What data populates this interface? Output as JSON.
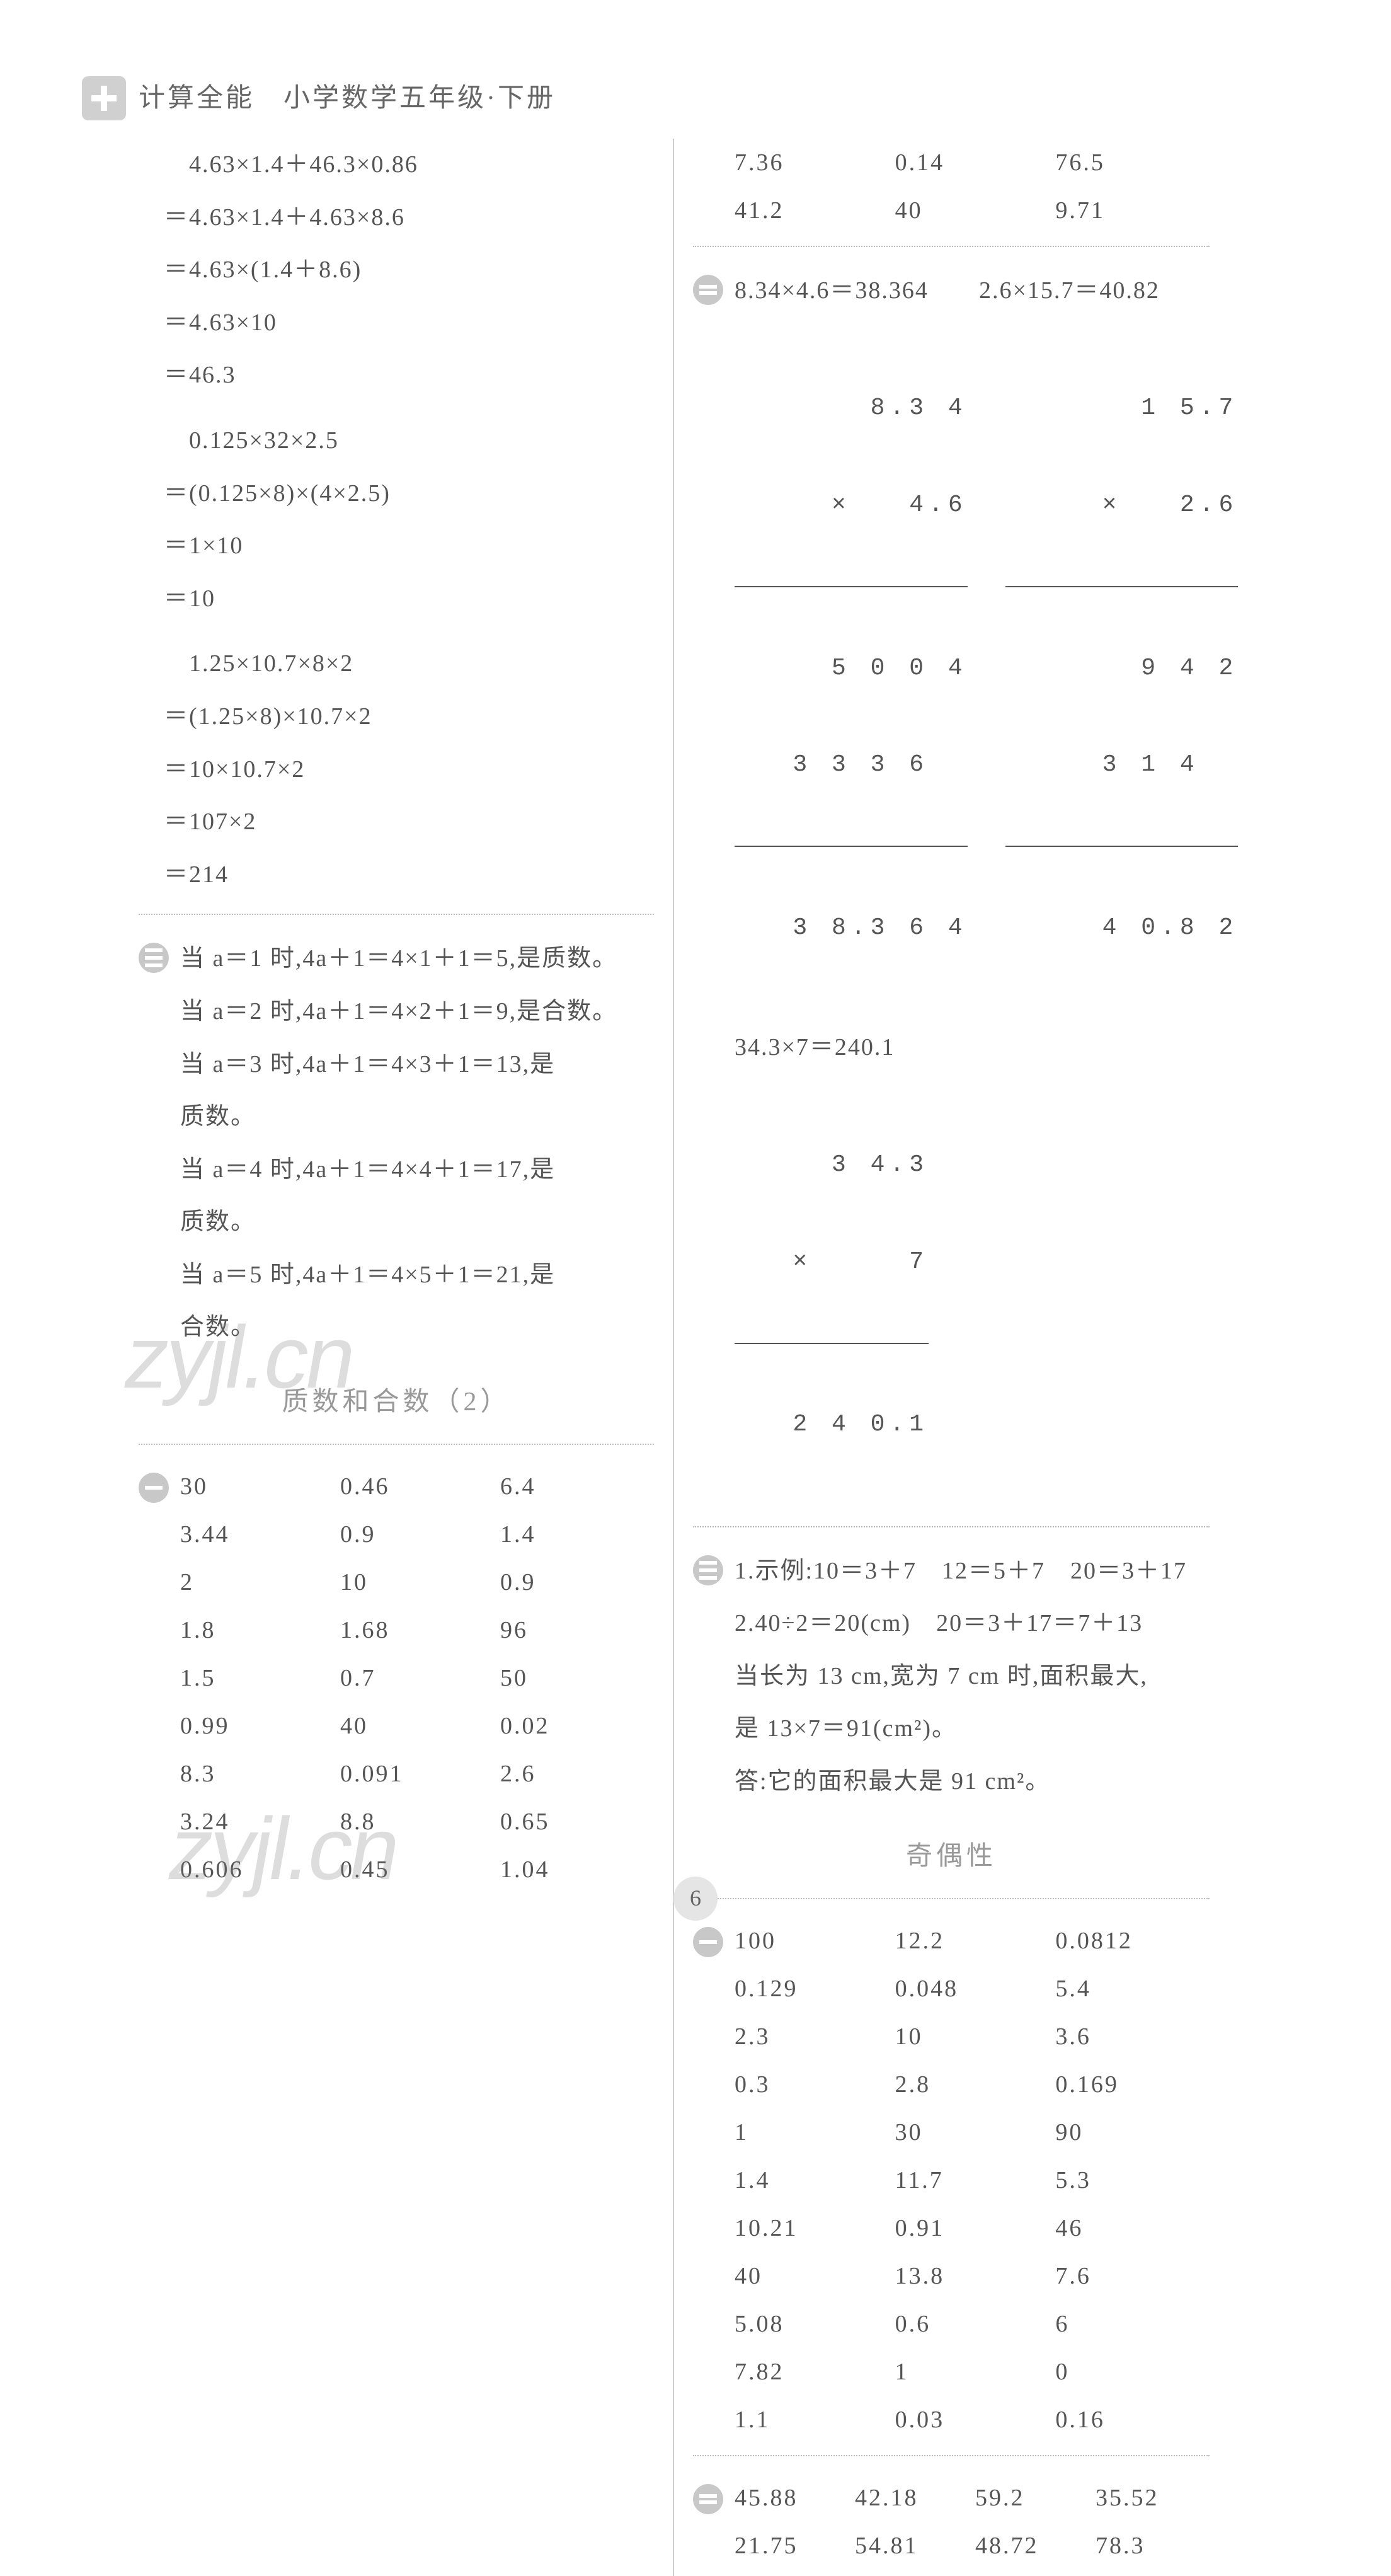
{
  "header": {
    "title": "计算全能　小学数学五年级·下册"
  },
  "left": {
    "calc1": [
      "　4.63×1.4＋46.3×0.86",
      "＝4.63×1.4＋4.63×8.6",
      "＝4.63×(1.4＋8.6)",
      "＝4.63×10",
      "＝46.3"
    ],
    "calc2": [
      "　0.125×32×2.5",
      "＝(0.125×8)×(4×2.5)",
      "＝1×10",
      "＝10"
    ],
    "calc3": [
      "　1.25×10.7×8×2",
      "＝(1.25×8)×10.7×2",
      "＝10×10.7×2",
      "＝107×2",
      "＝214"
    ],
    "prose": [
      "当 a＝1 时,4a＋1＝4×1＋1＝5,是质数。",
      "当 a＝2 时,4a＋1＝4×2＋1＝9,是合数。",
      "当 a＝3 时,4a＋1＝4×3＋1＝13,是",
      "质数。",
      "当 a＝4 时,4a＋1＝4×4＋1＝17,是",
      "质数。",
      "当 a＝5 时,4a＋1＝4×5＋1＝21,是",
      "合数。"
    ],
    "subtitle": "质数和合数（2）",
    "table": [
      [
        "30",
        "0.46",
        "6.4"
      ],
      [
        "3.44",
        "0.9",
        "1.4"
      ],
      [
        "2",
        "10",
        "0.9"
      ],
      [
        "1.8",
        "1.68",
        "96"
      ],
      [
        "1.5",
        "0.7",
        "50"
      ],
      [
        "0.99",
        "40",
        "0.02"
      ],
      [
        "8.3",
        "0.091",
        "2.6"
      ],
      [
        "3.24",
        "8.8",
        "0.65"
      ],
      [
        "0.606",
        "0.45",
        "1.04"
      ]
    ]
  },
  "right": {
    "topTable": [
      [
        "7.36",
        "0.14",
        "76.5"
      ],
      [
        "41.2",
        "40",
        "9.71"
      ]
    ],
    "eq1": "8.34×4.6＝38.364",
    "eq2": "2.6×15.7＝40.82",
    "mult1": {
      "top": "8.3 4",
      "times": "×   4.6",
      "p1": "5 0 0 4",
      "p2": "3 3 3 6  ",
      "res": "3 8.3 6 4"
    },
    "mult2": {
      "top": "1 5.7",
      "times": "×   2.6",
      "p1": "9 4 2",
      "p2": "3 1 4  ",
      "res": "4 0.8 2"
    },
    "eq3": "34.3×7＝240.1",
    "mult3": {
      "top": "3 4.3",
      "times": "×     7",
      "res": "2 4 0.1"
    },
    "prose3": [
      "1.示例:10＝3＋7　12＝5＋7　20＝3＋17",
      "2.40÷2＝20(cm)　20＝3＋17＝7＋13",
      "当长为 13 cm,宽为 7 cm 时,面积最大,",
      "是 13×7＝91(cm²)。",
      "答:它的面积最大是 91 cm²。"
    ],
    "subtitle": "奇偶性",
    "table2": [
      [
        "100",
        "12.2",
        "0.0812"
      ],
      [
        "0.129",
        "0.048",
        "5.4"
      ],
      [
        "2.3",
        "10",
        "3.6"
      ],
      [
        "0.3",
        "2.8",
        "0.169"
      ],
      [
        "1",
        "30",
        "90"
      ],
      [
        "1.4",
        "11.7",
        "5.3"
      ],
      [
        "10.21",
        "0.91",
        "46"
      ],
      [
        "40",
        "13.8",
        "7.6"
      ],
      [
        "5.08",
        "0.6",
        "6"
      ],
      [
        "7.82",
        "1",
        "0"
      ],
      [
        "1.1",
        "0.03",
        "0.16"
      ]
    ],
    "table3": [
      [
        "45.88",
        "42.18",
        "59.2",
        "35.52"
      ],
      [
        "21.75",
        "54.81",
        "48.72",
        "78.3"
      ]
    ]
  },
  "pageNumber": "6",
  "watermark": "zyjl.cn",
  "colors": {
    "text": "#555555",
    "subtitle": "#999999",
    "divider": "#bbbbbb",
    "marker": "#c8c8c8",
    "background": "#ffffff"
  }
}
